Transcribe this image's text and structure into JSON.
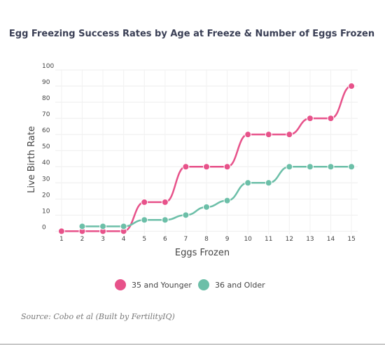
{
  "chart_data": {
    "type": "line",
    "title": "Egg Freezing Success Rates by Age at Freeze & Number of Eggs Frozen",
    "xlabel": "Eggs Frozen",
    "ylabel": "Live Birth Rate",
    "x": [
      1,
      2,
      3,
      4,
      5,
      6,
      7,
      8,
      9,
      10,
      11,
      12,
      13,
      14,
      15
    ],
    "xlim": [
      0.7,
      15.3
    ],
    "ylim": [
      -2,
      100
    ],
    "yticks": [
      0,
      10,
      20,
      30,
      40,
      50,
      60,
      70,
      80,
      90,
      100
    ],
    "grid": true,
    "legend_position": "bottom-center",
    "series": [
      {
        "name": "35 and Younger",
        "color": "#e7528a",
        "values": [
          0,
          0,
          0,
          0,
          18,
          18,
          40,
          40,
          40,
          60,
          60,
          60,
          70,
          70,
          90
        ]
      },
      {
        "name": "36 and Older",
        "color": "#6cbfa8",
        "values": [
          null,
          3,
          3,
          3,
          7,
          7,
          10,
          15,
          19,
          30,
          30,
          40,
          40,
          40,
          40
        ]
      }
    ]
  },
  "source_text": "Source: Cobo et al (Built by FertilityIQ)"
}
